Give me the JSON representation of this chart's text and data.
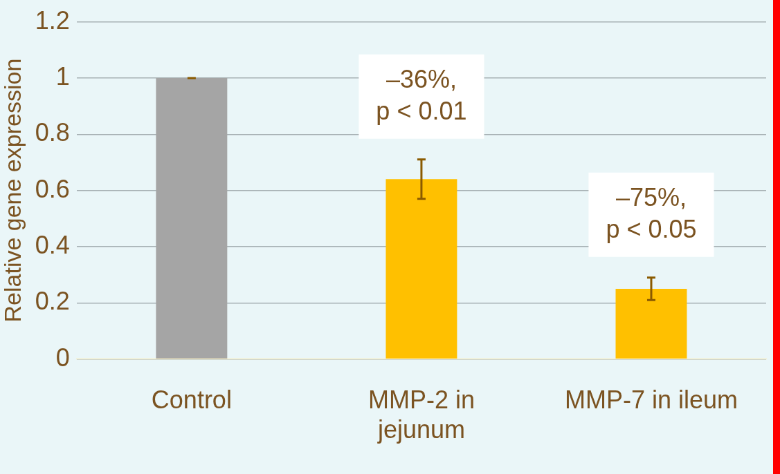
{
  "chart_data": {
    "type": "bar",
    "ylabel": "Relative gene expression",
    "categories": [
      "Control",
      "MMP-2 in jejunum",
      "MMP-7 in ileum"
    ],
    "values": [
      1.0,
      0.64,
      0.25
    ],
    "colors": [
      "#a5a5a5",
      "#ffc000",
      "#ffc000"
    ],
    "errors": [
      [
        1.0,
        1.0
      ],
      [
        0.57,
        0.71
      ],
      [
        0.21,
        0.29
      ]
    ],
    "ylim": [
      0,
      1.2
    ],
    "yticks": [
      0,
      0.2,
      0.4,
      0.6,
      0.8,
      1,
      1.2
    ],
    "grid": "y",
    "legend": false,
    "annotations": [
      "–36%,\np < 0.01",
      "–75%,\np < 0.05"
    ]
  }
}
